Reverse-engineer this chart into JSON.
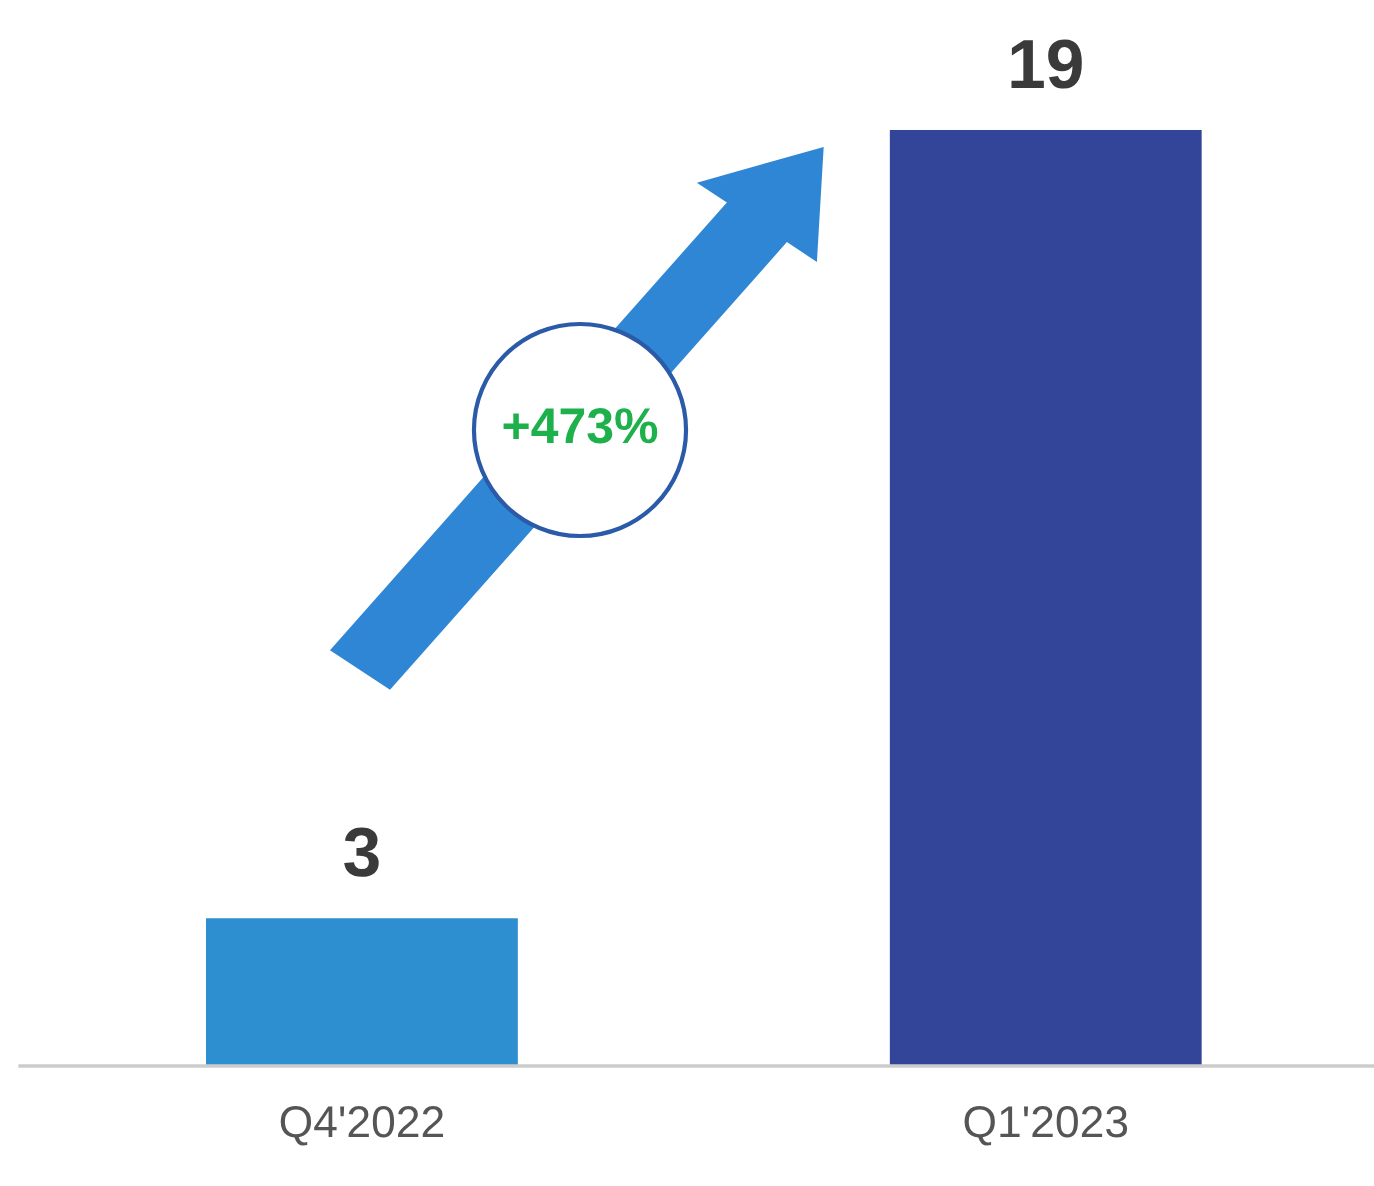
{
  "chart_data": {
    "type": "bar",
    "categories": [
      "Q4'2022",
      "Q1'2023"
    ],
    "values": [
      3,
      19
    ],
    "colors": [
      "#2e8fd0",
      "#334599"
    ],
    "data_labels": true,
    "grid": false,
    "annotations": [
      "+473%"
    ]
  }
}
